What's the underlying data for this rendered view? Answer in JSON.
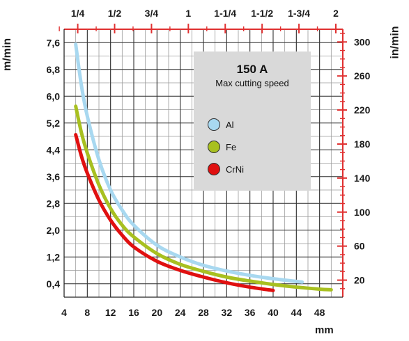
{
  "chart_data": {
    "type": "line",
    "legend": {
      "title": "150 A",
      "subtitle": "Max cutting speed",
      "position": "top-right"
    },
    "xlabel": "mm",
    "ylabel_left": "m/min",
    "ylabel_right": "in/min",
    "grid": true,
    "xlim": [
      4,
      52
    ],
    "ylim": [
      0,
      8.0
    ],
    "x_ticks": [
      "4",
      "8",
      "12",
      "16",
      "20",
      "24",
      "28",
      "32",
      "36",
      "40",
      "44",
      "48"
    ],
    "y_ticks_left": [
      "0,4",
      "1,2",
      "2,0",
      "2,8",
      "3,6",
      "4,4",
      "5,2",
      "6,0",
      "6,8",
      "7,6"
    ],
    "y_ticks_right": [
      "20",
      "60",
      "100",
      "140",
      "180",
      "220",
      "260",
      "300"
    ],
    "x_ticks_top": [
      "1/4",
      "1/2",
      "3/4",
      "1",
      "1-1/4",
      "1-1/2",
      "1-3/4",
      "2"
    ],
    "colors": {
      "axis_red": "#e03030",
      "grid": "#555555"
    },
    "series": [
      {
        "name": "Al",
        "color": "#a8d8f0",
        "x": [
          6,
          7,
          8,
          10,
          12,
          14,
          16,
          20,
          24,
          28,
          32,
          36,
          40,
          45
        ],
        "y": [
          7.55,
          6.3,
          5.4,
          4.1,
          3.2,
          2.6,
          2.15,
          1.55,
          1.2,
          0.95,
          0.78,
          0.65,
          0.55,
          0.45
        ]
      },
      {
        "name": "Fe",
        "color": "#a8c020",
        "x": [
          6,
          7,
          8,
          10,
          12,
          14,
          16,
          20,
          24,
          28,
          32,
          36,
          40,
          44,
          48,
          50
        ],
        "y": [
          5.7,
          4.9,
          4.3,
          3.35,
          2.65,
          2.15,
          1.8,
          1.3,
          0.98,
          0.77,
          0.6,
          0.48,
          0.38,
          0.3,
          0.24,
          0.22
        ]
      },
      {
        "name": "CrNi",
        "color": "#e01010",
        "x": [
          6,
          7,
          8,
          10,
          12,
          14,
          16,
          20,
          24,
          28,
          32,
          36,
          40
        ],
        "y": [
          4.85,
          4.2,
          3.7,
          2.9,
          2.3,
          1.85,
          1.5,
          1.07,
          0.8,
          0.6,
          0.43,
          0.3,
          0.2
        ]
      }
    ]
  }
}
